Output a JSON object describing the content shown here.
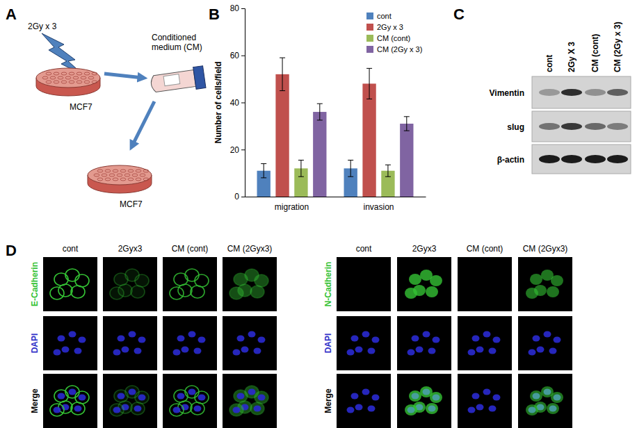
{
  "panel_labels": [
    "A",
    "B",
    "C",
    "D"
  ],
  "panel_a": {
    "irradiation": "2Gy x 3",
    "medium": [
      "Conditioned",
      "medium (CM)"
    ],
    "cells": [
      "MCF7",
      "MCF7"
    ]
  },
  "chart_data": {
    "type": "bar",
    "categories": [
      "migration",
      "invasion"
    ],
    "series": [
      {
        "name": "cont",
        "color": "#4f81bd",
        "values": [
          11,
          12
        ],
        "errors": [
          3,
          3.5
        ]
      },
      {
        "name": "2Gy x 3",
        "color": "#c0504d",
        "values": [
          52,
          48
        ],
        "errors": [
          7,
          6.5
        ]
      },
      {
        "name": "CM (cont)",
        "color": "#9bbb59",
        "values": [
          12,
          11
        ],
        "errors": [
          3.5,
          2.5
        ]
      },
      {
        "name": "CM (2Gy x 3)",
        "color": "#8064a2",
        "values": [
          36,
          31
        ],
        "errors": [
          3.5,
          3
        ]
      }
    ],
    "ylabel": "Number of cells/field",
    "ylim": [
      0,
      80
    ],
    "yticks": [
      0,
      20,
      40,
      60,
      80
    ],
    "legend": "upper-right",
    "grid": false
  },
  "panel_c": {
    "columns": [
      "cont",
      "2Gy X 3",
      "CM (cont)",
      "CM (2Gy x 3)"
    ],
    "rows": [
      "Vimentin",
      "slug",
      "β-actin"
    ]
  },
  "panel_d": {
    "left": {
      "columns": [
        "cont",
        "2Gyx3",
        "CM (cont)",
        "CM (2Gyx3)"
      ],
      "rows": [
        "E-Cadherin",
        "DAPI",
        "Merge"
      ]
    },
    "right": {
      "columns": [
        "cont",
        "2Gyx3",
        "CM (cont)",
        "CM (2Gyx3)"
      ],
      "rows": [
        "N-Cadherin",
        "DAPI",
        "Merge"
      ]
    }
  }
}
